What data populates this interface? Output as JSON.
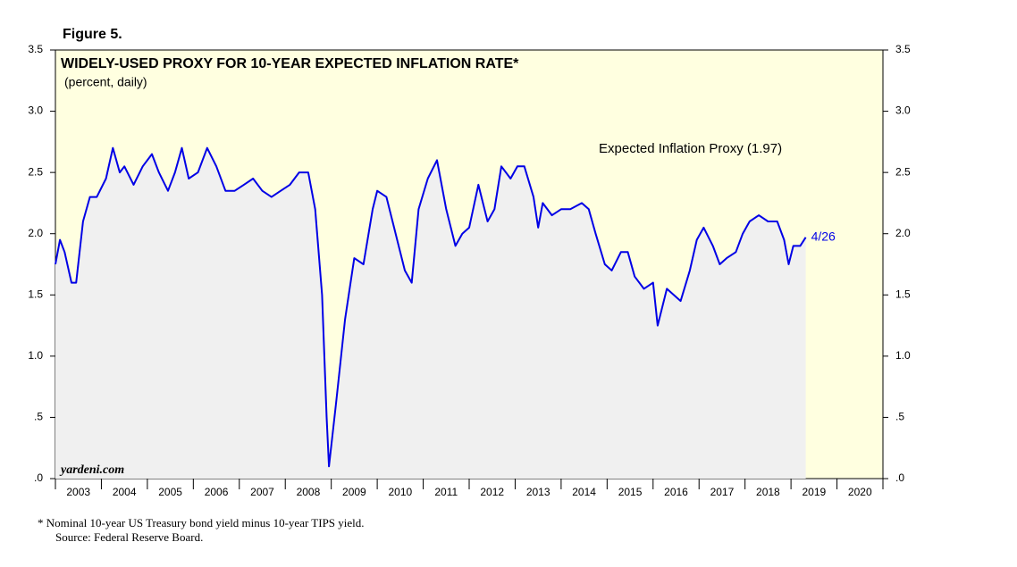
{
  "chart_data": {
    "type": "line",
    "figure_label": "Figure 5.",
    "title": "WIDELY-USED PROXY FOR 10-YEAR EXPECTED INFLATION RATE*",
    "subtitle": "(percent, daily)",
    "end_label": "4/26",
    "source_mark": "yardeni.com",
    "footnotes": [
      "*  Nominal 10-year US Treasury bond yield minus 10-year TIPS yield.",
      "Source: Federal Reserve Board."
    ],
    "background": "#ffffe0",
    "area_color": "#f0f0f0",
    "xlim": [
      2003,
      2021
    ],
    "xticks": [
      2003,
      2004,
      2005,
      2006,
      2007,
      2008,
      2009,
      2010,
      2011,
      2012,
      2013,
      2014,
      2015,
      2016,
      2017,
      2018,
      2019,
      2020,
      2021
    ],
    "xtick_labels": [
      {
        "value": 2003.5,
        "label": "2003"
      },
      {
        "value": 2004.5,
        "label": "2004"
      },
      {
        "value": 2005.5,
        "label": "2005"
      },
      {
        "value": 2006.5,
        "label": "2006"
      },
      {
        "value": 2007.5,
        "label": "2007"
      },
      {
        "value": 2008.5,
        "label": "2008"
      },
      {
        "value": 2009.5,
        "label": "2009"
      },
      {
        "value": 2010.5,
        "label": "2010"
      },
      {
        "value": 2011.5,
        "label": "2011"
      },
      {
        "value": 2012.5,
        "label": "2012"
      },
      {
        "value": 2013.5,
        "label": "2013"
      },
      {
        "value": 2014.5,
        "label": "2014"
      },
      {
        "value": 2015.5,
        "label": "2015"
      },
      {
        "value": 2016.5,
        "label": "2016"
      },
      {
        "value": 2017.5,
        "label": "2017"
      },
      {
        "value": 2018.5,
        "label": "2018"
      },
      {
        "value": 2019.5,
        "label": "2019"
      },
      {
        "value": 2020.5,
        "label": "2020"
      }
    ],
    "ylim": [
      0,
      3.5
    ],
    "yticks": [
      {
        "value": 0,
        "label": ".0"
      },
      {
        "value": 0.5,
        "label": ".5"
      },
      {
        "value": 1,
        "label": "1.0"
      },
      {
        "value": 1.5,
        "label": "1.5"
      },
      {
        "value": 2,
        "label": "2.0"
      },
      {
        "value": 2.5,
        "label": "2.5"
      },
      {
        "value": 3,
        "label": "3.0"
      },
      3.5
    ],
    "series": [
      {
        "name": "Expected Inflation Proxy (1.97)",
        "color": "#0000e6",
        "x": [
          2003.0,
          2003.1,
          2003.2,
          2003.35,
          2003.45,
          2003.6,
          2003.75,
          2003.9,
          2004.1,
          2004.25,
          2004.4,
          2004.5,
          2004.7,
          2004.9,
          2005.1,
          2005.25,
          2005.45,
          2005.6,
          2005.75,
          2005.9,
          2006.1,
          2006.3,
          2006.5,
          2006.7,
          2006.9,
          2007.1,
          2007.3,
          2007.5,
          2007.7,
          2007.9,
          2008.1,
          2008.3,
          2008.5,
          2008.65,
          2008.8,
          2008.9,
          2008.95,
          2009.1,
          2009.3,
          2009.5,
          2009.7,
          2009.9,
          2010.0,
          2010.2,
          2010.4,
          2010.6,
          2010.75,
          2010.9,
          2011.1,
          2011.3,
          2011.5,
          2011.7,
          2011.85,
          2012.0,
          2012.2,
          2012.4,
          2012.55,
          2012.7,
          2012.9,
          2013.05,
          2013.2,
          2013.4,
          2013.5,
          2013.6,
          2013.8,
          2014.0,
          2014.2,
          2014.45,
          2014.6,
          2014.75,
          2014.95,
          2015.1,
          2015.3,
          2015.45,
          2015.6,
          2015.8,
          2016.0,
          2016.1,
          2016.3,
          2016.45,
          2016.6,
          2016.8,
          2016.95,
          2017.1,
          2017.3,
          2017.45,
          2017.6,
          2017.8,
          2017.95,
          2018.1,
          2018.3,
          2018.5,
          2018.7,
          2018.85,
          2018.95,
          2019.05,
          2019.2,
          2019.32
        ],
        "values": [
          1.75,
          1.95,
          1.85,
          1.6,
          1.6,
          2.1,
          2.3,
          2.3,
          2.45,
          2.7,
          2.5,
          2.55,
          2.4,
          2.55,
          2.65,
          2.5,
          2.35,
          2.5,
          2.7,
          2.45,
          2.5,
          2.7,
          2.55,
          2.35,
          2.35,
          2.4,
          2.45,
          2.35,
          2.3,
          2.35,
          2.4,
          2.5,
          2.5,
          2.2,
          1.5,
          0.5,
          0.1,
          0.6,
          1.3,
          1.8,
          1.75,
          2.2,
          2.35,
          2.3,
          2.0,
          1.7,
          1.6,
          2.2,
          2.45,
          2.6,
          2.2,
          1.9,
          2.0,
          2.05,
          2.4,
          2.1,
          2.2,
          2.55,
          2.45,
          2.55,
          2.55,
          2.3,
          2.05,
          2.25,
          2.15,
          2.2,
          2.2,
          2.25,
          2.2,
          2.0,
          1.75,
          1.7,
          1.85,
          1.85,
          1.65,
          1.55,
          1.6,
          1.25,
          1.55,
          1.5,
          1.45,
          1.7,
          1.95,
          2.05,
          1.9,
          1.75,
          1.8,
          1.85,
          2.0,
          2.1,
          2.15,
          2.1,
          2.1,
          1.95,
          1.75,
          1.9,
          1.9,
          1.97
        ]
      }
    ]
  }
}
